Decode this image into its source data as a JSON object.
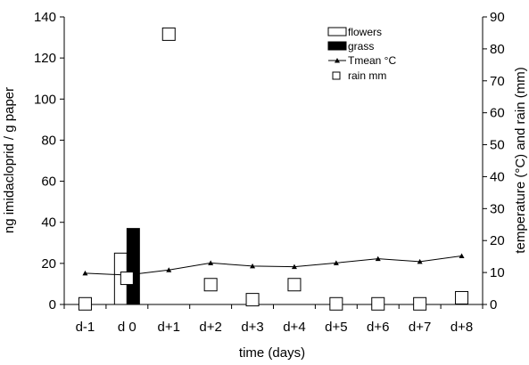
{
  "chart_data": {
    "type": "bar",
    "categories": [
      "d-1",
      "d 0",
      "d+1",
      "d+2",
      "d+3",
      "d+4",
      "d+5",
      "d+6",
      "d+7",
      "d+8"
    ],
    "xlabel": "time (days)",
    "ylabel_left": "ng imidacloprid / g paper",
    "ylabel_right": "temperature (°C) and rain (mm)",
    "ylim_left": [
      0,
      140
    ],
    "yticks_left": [
      "0",
      "20",
      "40",
      "60",
      "80",
      "100",
      "120",
      "140"
    ],
    "ylim_right": [
      0,
      90
    ],
    "yticks_right": [
      "0",
      "10",
      "20",
      "30",
      "40",
      "50",
      "60",
      "70",
      "80",
      "90"
    ],
    "series": [
      {
        "name": "flowers",
        "kind": "bar",
        "axis": "left",
        "color": "#ffffff",
        "stroke": "#000000",
        "values": [
          0,
          25,
          0,
          0,
          0,
          0,
          0,
          0,
          0,
          0
        ]
      },
      {
        "name": "grass",
        "kind": "bar",
        "axis": "left",
        "color": "#000000",
        "stroke": "#000000",
        "values": [
          0,
          37,
          0,
          0,
          0,
          0,
          0,
          0,
          0,
          0
        ]
      },
      {
        "name": "Tmean °C",
        "kind": "line",
        "axis": "right",
        "color": "#000000",
        "values": [
          9.8,
          9.2,
          10.8,
          13.0,
          12.0,
          11.8,
          13.0,
          14.3,
          13.4,
          15.2
        ]
      },
      {
        "name": "rain mm",
        "kind": "scatter",
        "axis": "right",
        "color": "#ffffff",
        "stroke": "#000000",
        "values": [
          0.2,
          8.2,
          84.6,
          6.2,
          1.5,
          6.2,
          0.2,
          0.2,
          0.2,
          2.1
        ]
      }
    ],
    "grid": false,
    "legend_position": "top-right"
  }
}
